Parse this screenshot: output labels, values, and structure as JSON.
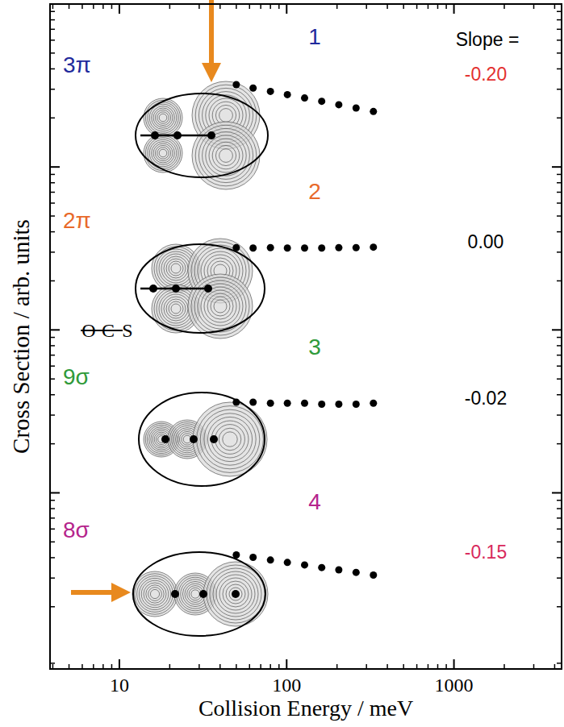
{
  "chart_data": {
    "type": "scatter",
    "x_label": "Collision Energy / meV",
    "y_label": "Cross Section / arb. units",
    "log": true,
    "grid": false,
    "tick_labels": "x",
    "marker": "circle",
    "xlim": [
      3.85,
      4400
    ],
    "xticks": [
      10,
      100,
      1000
    ],
    "ylim": [
      0.83,
      10000
    ],
    "yticks": [
      10,
      100,
      1000
    ],
    "x": [
      50,
      63,
      80,
      101,
      128,
      162,
      205,
      260,
      330
    ],
    "series": [
      {
        "name": "3π",
        "color": "#1f2a9c",
        "number": "1",
        "slope": {
          "value": -0.2,
          "label": "-0.20"
        },
        "slope_color": "#e3302f",
        "values": [
          3200,
          3050,
          2910,
          2780,
          2650,
          2530,
          2410,
          2300,
          2190
        ]
      },
      {
        "name": "2π",
        "color": "#e8692a",
        "number": "2",
        "slope": {
          "value": 0,
          "label": "0.00"
        },
        "slope_color": "#000000",
        "values": [
          320,
          318,
          320,
          318,
          318,
          318,
          320,
          320,
          322
        ]
      },
      {
        "name": "9σ",
        "color": "#2f9a3a",
        "number": "3",
        "slope": {
          "value": -0.02,
          "label": "-0.02"
        },
        "slope_color": "#000000",
        "values": [
          36,
          36,
          35.5,
          35.5,
          35.5,
          35,
          35,
          35,
          35.5
        ]
      },
      {
        "name": "8σ",
        "color": "#b5248c",
        "number": "4",
        "slope": {
          "value": -0.15,
          "label": "-0.15"
        },
        "slope_color": "#d8285c",
        "values": [
          4.16,
          4.02,
          3.87,
          3.74,
          3.61,
          3.48,
          3.37,
          3.25,
          3.13
        ]
      }
    ],
    "annotations": [
      "Slope ="
    ],
    "molecule": [
      "O",
      "C",
      "S"
    ]
  }
}
